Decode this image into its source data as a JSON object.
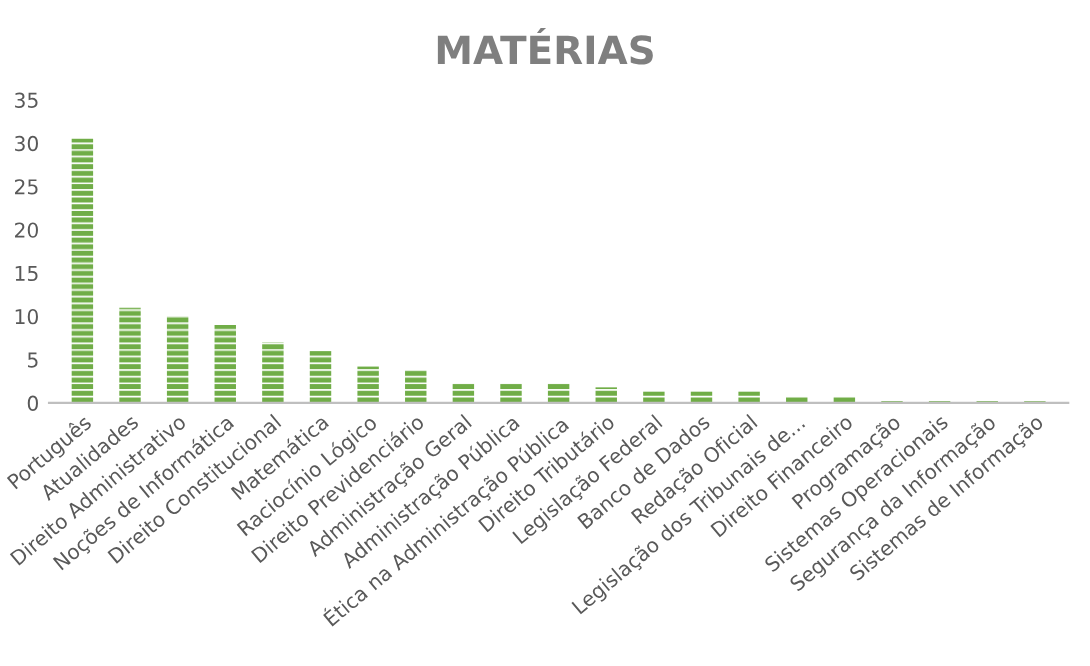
{
  "chart_data": {
    "type": "bar",
    "title": "MATÉRIAS",
    "categories": [
      "Português",
      "Atualidades",
      "Direito Administrativo",
      "Noções de Informática",
      "Direito Constitucional",
      "Matemática",
      "Raciocínio Lógico",
      "Direito Previdenciário",
      "Administração Geral",
      "Administração Pública",
      "Ética na Administração Pública",
      "Direito Tributário",
      "Legislação Federal",
      "Banco de Dados",
      "Redação Oficial",
      "Legislação dos Tribunais de...",
      "Direito Financeiro",
      "Programação",
      "Sistemas Operacionais",
      "Segurança da Informação",
      "Sistemas de Informação"
    ],
    "values": [
      30.5,
      11,
      10,
      9,
      7,
      6,
      4.2,
      3.8,
      2.3,
      2.3,
      2.3,
      1.8,
      1.3,
      1.3,
      1.3,
      0.8,
      0.8,
      0.2,
      0.2,
      0.2,
      0.2
    ],
    "color": "#70ad47",
    "ylim": [
      0,
      35
    ],
    "yticks": [
      0,
      5,
      10,
      15,
      20,
      25,
      30,
      35
    ],
    "grid": false
  }
}
